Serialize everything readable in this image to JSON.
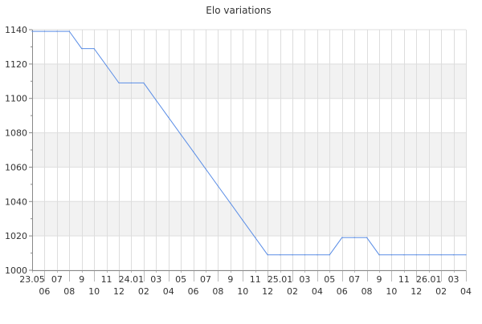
{
  "chart_data": {
    "type": "line",
    "title": "Elo variations",
    "xlabel": "",
    "ylabel": "",
    "ylim": [
      1000,
      1140
    ],
    "yticks": [
      1000,
      1020,
      1040,
      1060,
      1080,
      1100,
      1120,
      1140
    ],
    "grid": true,
    "line_color": "#5b8ee6",
    "band_color": "#f2f2f2",
    "categories": [
      "23.05",
      "06",
      "07",
      "08",
      "9",
      "10",
      "11",
      "12",
      "24.01",
      "02",
      "03",
      "04",
      "05",
      "06",
      "07",
      "08",
      "9",
      "10",
      "11",
      "12",
      "25.01",
      "02",
      "03",
      "04",
      "05",
      "06",
      "07",
      "08",
      "9",
      "10",
      "11",
      "12",
      "26.01",
      "02",
      "03",
      "04"
    ],
    "values": [
      1139,
      1139,
      1139,
      1139,
      1129,
      1129,
      1119,
      1109,
      1109,
      1109,
      1099,
      1089,
      1079,
      1069,
      1059,
      1049,
      1039,
      1029,
      1019,
      1009,
      1009,
      1009,
      1009,
      1009,
      1009,
      1019,
      1019,
      1019,
      1009,
      1009,
      1009,
      1009,
      1009,
      1009,
      1009,
      1009
    ]
  }
}
